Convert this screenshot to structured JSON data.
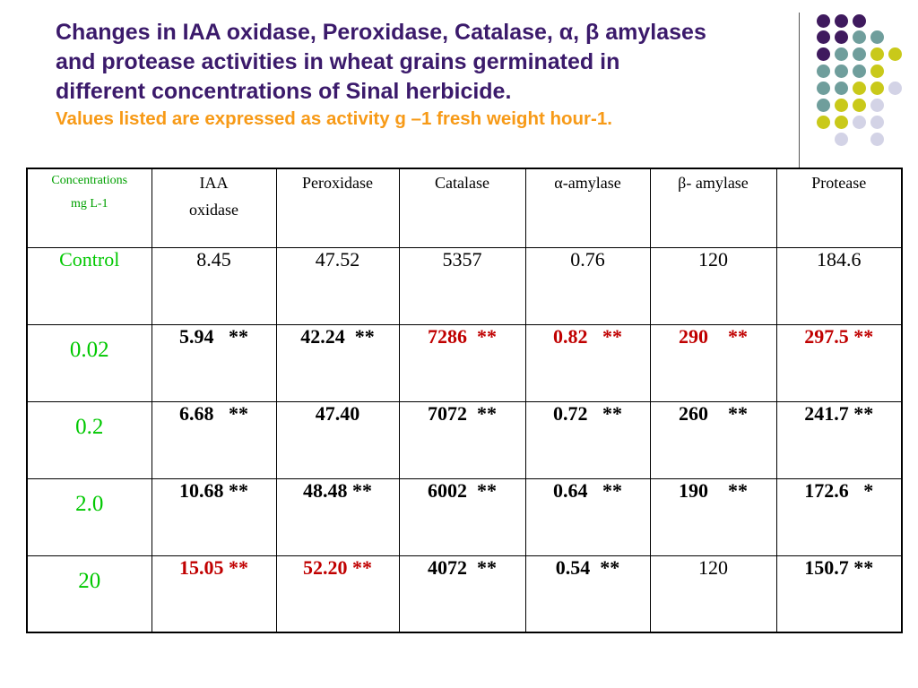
{
  "title_lines": [
    "Changes in IAA oxidase, Peroxidase, Catalase, α, β amylases",
    "and protease activities in wheat grains germinated in",
    "different concentrations of Sinal herbicide."
  ],
  "subtitle": "Values listed are expressed as activity g –1 fresh weight hour-1.",
  "colors": {
    "title": "#3b1a6b",
    "subtitle": "#f79a17",
    "label_green": "#00c800",
    "highlight_red": "#c00000",
    "dot_purple": "#3f1a5e",
    "dot_teal": "#6f9e9c",
    "dot_olive": "#c9c91a",
    "dot_lavender": "#d3d3e6"
  },
  "table": {
    "headers": [
      {
        "line1": "Concentrations",
        "line2": "mg L-1"
      },
      {
        "line1": "IAA",
        "line2": "oxidase"
      },
      {
        "line1": "Peroxidase",
        "line2": ""
      },
      {
        "line1": "Catalase",
        "line2": ""
      },
      {
        "line1": "α-amylase",
        "line2": ""
      },
      {
        "line1": "β- amylase",
        "line2": ""
      },
      {
        "line1": "Protease",
        "line2": ""
      }
    ],
    "rows": [
      {
        "label": "Control",
        "cells": [
          "8.45",
          "47.52",
          "5357",
          "0.76",
          "120",
          "184.6"
        ]
      },
      {
        "label": "0.02",
        "cells": [
          "5.94   **",
          "42.24  **",
          "7286  **",
          "0.82   **",
          "290    **",
          "297.5 **"
        ]
      },
      {
        "label": "0.2",
        "cells": [
          "6.68   **",
          "47.40",
          "7072  **",
          "0.72   **",
          "260    **",
          "241.7 **"
        ]
      },
      {
        "label": "2.0",
        "cells": [
          "10.68 **",
          "48.48 **",
          "6002  **",
          "0.64   **",
          "190    **",
          "172.6   *"
        ]
      },
      {
        "label": "20",
        "cells": [
          "15.05 **",
          "52.20 **",
          "4072  **",
          "0.54  **",
          "120",
          "150.7 **"
        ]
      }
    ]
  }
}
